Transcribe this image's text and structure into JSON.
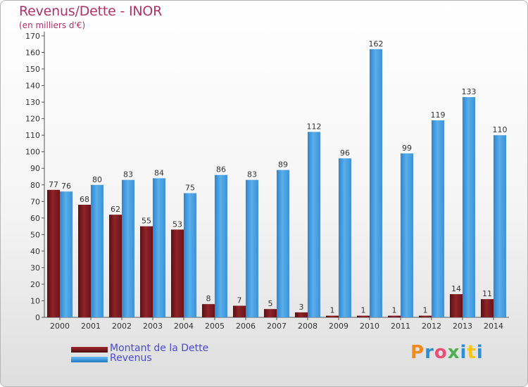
{
  "title": "Revenus/Dette - INOR",
  "subtitle": "(en milliers d'€)",
  "legend": {
    "debt_label": "Montant de la Dette",
    "revenue_label": "Revenus"
  },
  "logo": {
    "letters": [
      "P",
      "r",
      "o",
      "x",
      "i",
      "t",
      "i"
    ],
    "colors": [
      "#f08a1c",
      "#2a8fd4",
      "#e94e77",
      "#4caf50",
      "#2a8fd4",
      "#f5c518",
      "#2a8fd4"
    ]
  },
  "colors": {
    "debt": "#7a1a1e",
    "revenue": "#3d9be0",
    "title": "#b0306a",
    "legend_text": "#4a4ad8"
  },
  "chart_data": {
    "type": "bar",
    "categories": [
      "2000",
      "2001",
      "2002",
      "2003",
      "2004",
      "2005",
      "2006",
      "2007",
      "2008",
      "2009",
      "2010",
      "2011",
      "2012",
      "2013",
      "2014"
    ],
    "series": [
      {
        "name": "Montant de la Dette",
        "values": [
          77,
          68,
          62,
          55,
          53,
          8,
          7,
          5,
          3,
          1,
          1,
          1,
          1,
          14,
          11
        ]
      },
      {
        "name": "Revenus",
        "values": [
          76,
          80,
          83,
          84,
          75,
          86,
          83,
          89,
          112,
          96,
          162,
          99,
          119,
          133,
          110
        ]
      }
    ],
    "ylim": [
      0,
      170
    ],
    "yticks": [
      0,
      10,
      20,
      30,
      40,
      50,
      60,
      70,
      80,
      90,
      100,
      110,
      120,
      130,
      140,
      150,
      160,
      170
    ],
    "grid": false,
    "legend_position": "bottom-left"
  }
}
